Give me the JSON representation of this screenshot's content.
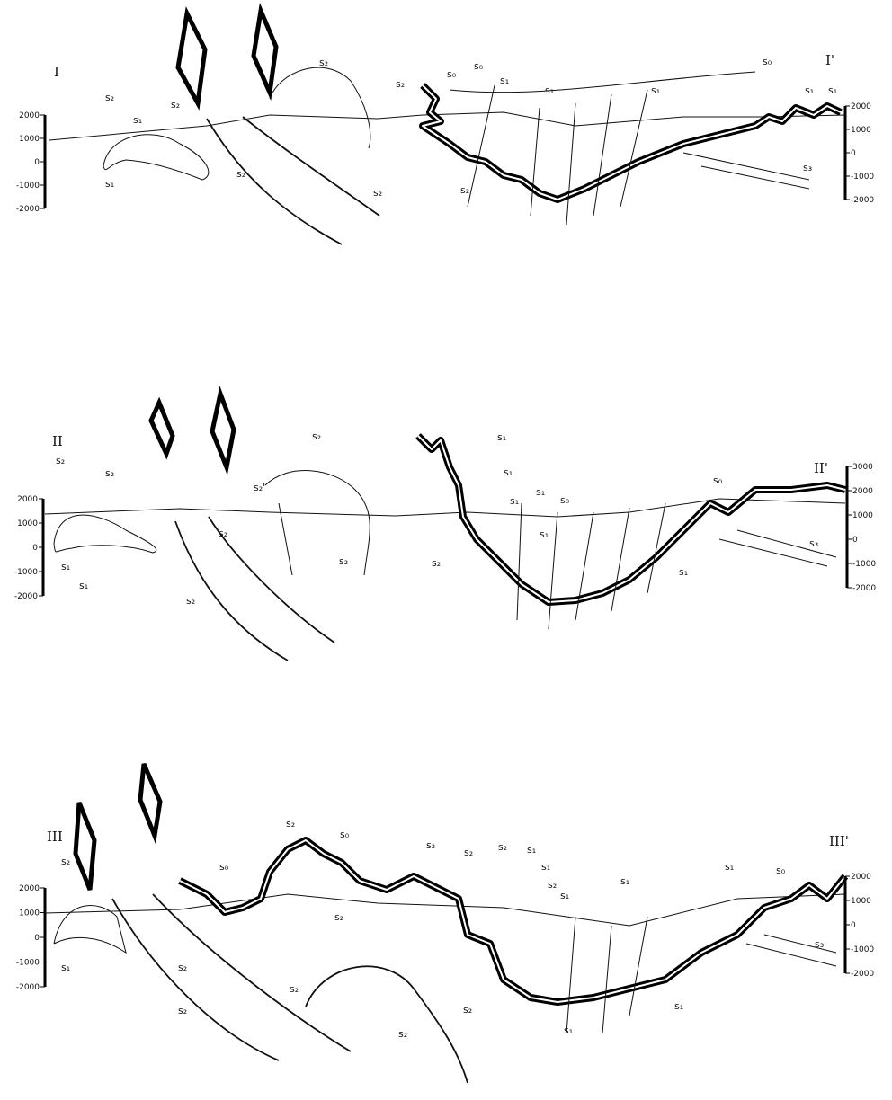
{
  "sections": [
    {
      "label_left": "I",
      "label_right": "I'",
      "scale_left": [
        2000,
        1000,
        0,
        -1000,
        -2000
      ],
      "scale_right": [
        2000,
        1000,
        0,
        -1000,
        -2000
      ],
      "annotations": [
        "s₂",
        "s₁",
        "s₂",
        "s₁",
        "s₂",
        "s₂",
        "s₂",
        "s₂",
        "s₀",
        "s₀",
        "s₁",
        "s₁",
        "s₂",
        "s₁",
        "s₀",
        "s₁",
        "s₁",
        "s₃"
      ]
    },
    {
      "label_left": "II",
      "label_right": "II'",
      "scale_left": [
        2000,
        1000,
        0,
        -1000,
        -2000
      ],
      "scale_right": [
        3000,
        2000,
        1000,
        0,
        -1000,
        -2000
      ],
      "annotations": [
        "s₂",
        "s₂",
        "s₁",
        "s₁",
        "s₂",
        "s₂",
        "s₂'",
        "s₂",
        "s₂",
        "s₂",
        "s₁",
        "s₁",
        "s₁",
        "s₁",
        "s₀",
        "s₁",
        "s₀",
        "s₁",
        "s₃"
      ]
    },
    {
      "label_left": "III",
      "label_right": "III'",
      "scale_left": [
        2000,
        1000,
        0,
        -1000,
        -2000
      ],
      "scale_right": [
        2000,
        1000,
        0,
        -1000,
        -2000
      ],
      "annotations": [
        "s₂",
        "s₁",
        "s₂",
        "s₀",
        "s₀",
        "s₂",
        "s₂",
        "s₂",
        "s₂",
        "s₂",
        "s₂",
        "s₂",
        "s₁",
        "s₁",
        "s₂",
        "s₁",
        "s₁",
        "s₁",
        "s₀",
        "s₂",
        "s₂",
        "s₁",
        "s₁",
        "s₃"
      ]
    }
  ]
}
